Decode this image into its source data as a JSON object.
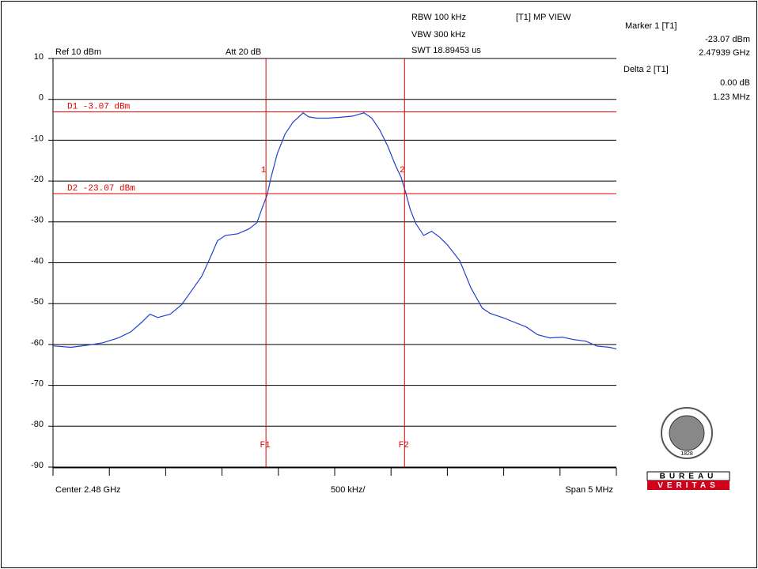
{
  "header": {
    "rbw": "RBW 100 kHz",
    "vbw": "VBW 300 kHz",
    "swt": "SWT 18.89453 us",
    "view": "[T1] MP VIEW",
    "ref": "Ref 10 dBm",
    "att": "Att 20 dB"
  },
  "marker_info": {
    "marker_title": "Marker 1 [T1]",
    "marker_level": "-23.07 dBm",
    "marker_freq": "2.47939 GHz",
    "delta_title": "Delta 2 [T1]",
    "delta_level": "0.00 dB",
    "delta_freq": "1.23 MHz"
  },
  "footer": {
    "center": "Center 2.48 GHz",
    "div": "500 kHz/",
    "span": "Span 5 MHz"
  },
  "logo": {
    "year": "1828",
    "line1": "BUREAU",
    "line2": "VERITAS"
  },
  "chart_data": {
    "type": "line",
    "color": "#1f3fd0",
    "grid": true,
    "xlim": [
      2477.5,
      2482.5
    ],
    "xticks": [
      2477.5,
      2478,
      2478.5,
      2479,
      2479.5,
      2480,
      2480.5,
      2481,
      2481.5,
      2482,
      2482.5
    ],
    "ylim": [
      -90,
      10
    ],
    "yticks": [
      10,
      0,
      -10,
      -20,
      -30,
      -40,
      -50,
      -60,
      -70,
      -80,
      -90
    ],
    "x": [
      2477.5,
      2477.66,
      2477.8,
      2477.94,
      2478.08,
      2478.19,
      2478.29,
      2478.36,
      2478.43,
      2478.54,
      2478.64,
      2478.71,
      2478.82,
      2478.89,
      2478.96,
      2479.03,
      2479.14,
      2479.24,
      2479.31,
      2479.36,
      2479.4,
      2479.43,
      2479.49,
      2479.56,
      2479.63,
      2479.72,
      2479.77,
      2479.84,
      2479.94,
      2480.05,
      2480.16,
      2480.26,
      2480.33,
      2480.4,
      2480.47,
      2480.54,
      2480.59,
      2480.63,
      2480.67,
      2480.72,
      2480.79,
      2480.86,
      2480.93,
      2481.0,
      2481.11,
      2481.21,
      2481.31,
      2481.38,
      2481.49,
      2481.59,
      2481.7,
      2481.8,
      2481.91,
      2482.02,
      2482.12,
      2482.23,
      2482.33,
      2482.44,
      2482.5
    ],
    "values": [
      -60.35,
      -60.7,
      -60.2,
      -59.6,
      -58.4,
      -56.9,
      -54.5,
      -52.6,
      -53.4,
      -52.6,
      -50.3,
      -47.6,
      -43.3,
      -39.1,
      -34.6,
      -33.3,
      -32.9,
      -31.7,
      -30.2,
      -26.3,
      -23.4,
      -19.7,
      -13.3,
      -8.5,
      -5.6,
      -3.3,
      -4.3,
      -4.6,
      -4.6,
      -4.4,
      -4.1,
      -3.3,
      -4.6,
      -7.5,
      -11.4,
      -16.2,
      -19.1,
      -22.8,
      -26.9,
      -30.4,
      -33.3,
      -32.3,
      -33.7,
      -35.6,
      -39.5,
      -46.2,
      -51.1,
      -52.4,
      -53.4,
      -54.5,
      -55.7,
      -57.6,
      -58.4,
      -58.2,
      -58.8,
      -59.2,
      -60.4,
      -60.7,
      -61.1
    ],
    "hlines": [
      {
        "value": -3.07,
        "label": "D1 -3.07 dBm"
      },
      {
        "value": -23.07,
        "label": "D2 -23.07 dBm"
      }
    ],
    "vlines": [
      {
        "x": 2479.39,
        "label": "F1",
        "marker": "1"
      },
      {
        "x": 2480.62,
        "label": "F2",
        "marker": "2"
      }
    ]
  }
}
